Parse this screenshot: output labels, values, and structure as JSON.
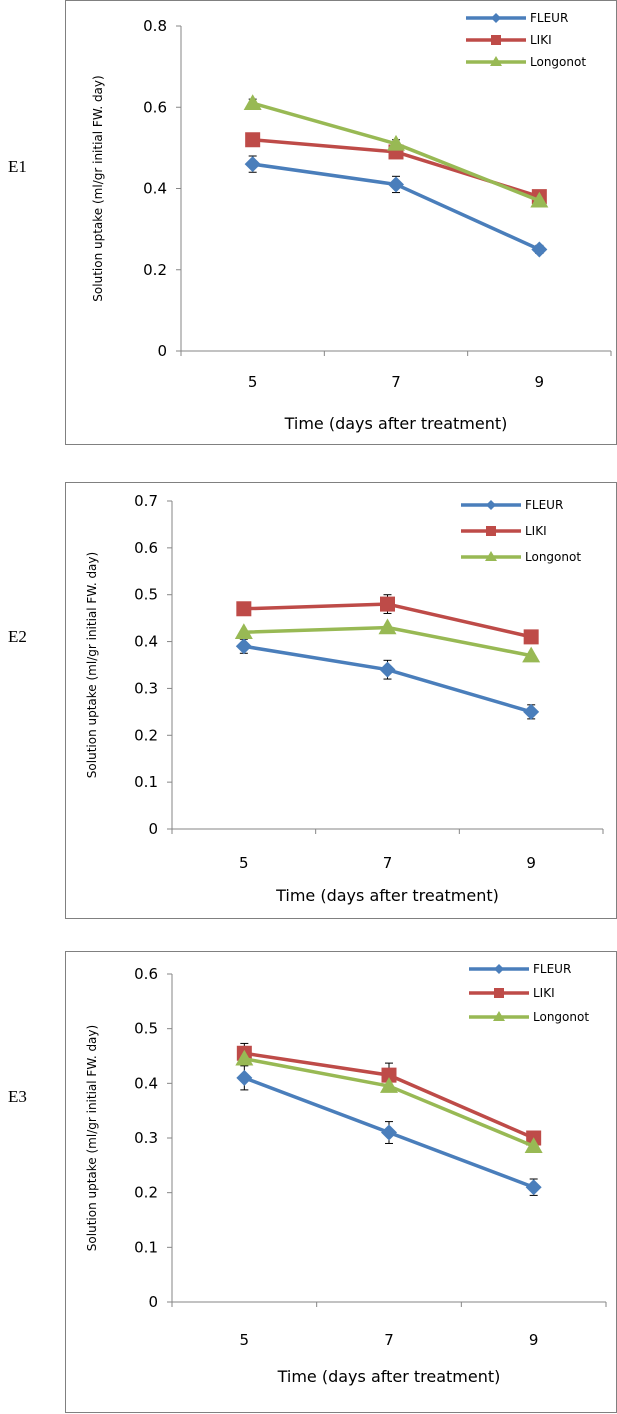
{
  "figure": {
    "panels": [
      {
        "label": "E1"
      },
      {
        "label": "E2"
      },
      {
        "label": "E3"
      }
    ]
  },
  "chart_data": [
    {
      "type": "line",
      "panel": "E1",
      "title": "",
      "xlabel": "Time (days after treatment)",
      "ylabel": "Solution uptake (ml/gr initial FW. day)",
      "categories": [
        "5",
        "7",
        "9"
      ],
      "ylim": [
        0,
        0.8
      ],
      "yticks": [
        0,
        0.2,
        0.4,
        0.6,
        0.8
      ],
      "ytick_labels": [
        "0",
        "0.2",
        "0.4",
        "0.6",
        "0.8"
      ],
      "legend_position": "top-right",
      "series": [
        {
          "name": "FLEUR",
          "color": "#4a7ebb",
          "marker": "diamond",
          "values": [
            0.46,
            0.41,
            0.25
          ],
          "err": [
            0.02,
            0.02,
            0.01
          ]
        },
        {
          "name": "LIKI",
          "color": "#be4b48",
          "marker": "square",
          "values": [
            0.52,
            0.49,
            0.38
          ],
          "err": [
            0.0,
            0.0,
            0.0
          ]
        },
        {
          "name": "Longonot",
          "color": "#98b954",
          "marker": "triangle",
          "values": [
            0.61,
            0.51,
            0.37
          ],
          "err": [
            0.01,
            0.01,
            0.0
          ]
        }
      ]
    },
    {
      "type": "line",
      "panel": "E2",
      "title": "",
      "xlabel": "Time (days after treatment)",
      "ylabel": "Solution uptake (ml/gr initial FW. day)",
      "categories": [
        "5",
        "7",
        "9"
      ],
      "ylim": [
        0,
        0.7
      ],
      "yticks": [
        0,
        0.1,
        0.2,
        0.3,
        0.4,
        0.5,
        0.6,
        0.7
      ],
      "ytick_labels": [
        "0",
        "0.1",
        "0.2",
        "0.3",
        "0.4",
        "0.5",
        "0.6",
        "0.7"
      ],
      "legend_position": "top-right",
      "series": [
        {
          "name": "FLEUR",
          "color": "#4a7ebb",
          "marker": "diamond",
          "values": [
            0.39,
            0.34,
            0.25
          ],
          "err": [
            0.015,
            0.02,
            0.015
          ]
        },
        {
          "name": "LIKI",
          "color": "#be4b48",
          "marker": "square",
          "values": [
            0.47,
            0.48,
            0.41
          ],
          "err": [
            0.0,
            0.02,
            0.0
          ]
        },
        {
          "name": "Longonot",
          "color": "#98b954",
          "marker": "triangle",
          "values": [
            0.42,
            0.43,
            0.37
          ],
          "err": [
            0.0,
            0.0,
            0.0
          ]
        }
      ]
    },
    {
      "type": "line",
      "panel": "E3",
      "title": "",
      "xlabel": "Time (days after treatment)",
      "ylabel": "Solution uptake (ml/gr initial FW. day)",
      "categories": [
        "5",
        "7",
        "9"
      ],
      "ylim": [
        0,
        0.6
      ],
      "yticks": [
        0,
        0.1,
        0.2,
        0.3,
        0.4,
        0.5,
        0.6
      ],
      "ytick_labels": [
        "0",
        "0.1",
        "0.2",
        "0.3",
        "0.4",
        "0.5",
        "0.6"
      ],
      "legend_position": "top-right",
      "series": [
        {
          "name": "FLEUR",
          "color": "#4a7ebb",
          "marker": "diamond",
          "values": [
            0.41,
            0.31,
            0.21
          ],
          "err": [
            0.022,
            0.02,
            0.015
          ]
        },
        {
          "name": "LIKI",
          "color": "#be4b48",
          "marker": "square",
          "values": [
            0.455,
            0.415,
            0.3
          ],
          "err": [
            0.018,
            0.022,
            0.0
          ]
        },
        {
          "name": "Longonot",
          "color": "#98b954",
          "marker": "triangle",
          "values": [
            0.445,
            0.395,
            0.285
          ],
          "err": [
            0.0,
            0.0,
            0.0
          ]
        }
      ]
    }
  ]
}
